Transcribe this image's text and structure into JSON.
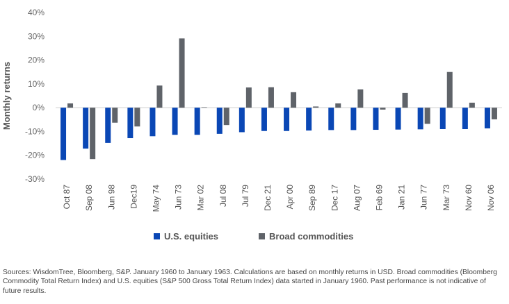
{
  "chart_data": {
    "type": "bar",
    "ylabel": "Monthly returns",
    "xlabel": "",
    "ylim": [
      -30,
      40
    ],
    "yticks": [
      -30,
      -20,
      -10,
      0,
      10,
      20,
      30,
      40
    ],
    "ytick_labels": [
      "-30%",
      "-20%",
      "-10%",
      "0%",
      "10%",
      "20%",
      "30%",
      "40%"
    ],
    "categories": [
      "Oct 87",
      "Sep 08",
      "Jun 98",
      "Dec19",
      "May 74",
      "Jun 73",
      "Mar 02",
      "Jul 08",
      "Jul 79",
      "Dec 21",
      "Apr 00",
      "Sep 89",
      "Dec 17",
      "Aug 07",
      "Feb 69",
      "Jan 21",
      "Jun 77",
      "Mar 73",
      "Nov 60",
      "Nov 06"
    ],
    "series": [
      {
        "name": "U.S. equities",
        "color": "#0a47b5",
        "values": [
          -22,
          -17.2,
          -14.8,
          -12.8,
          -12,
          -11.4,
          -11.4,
          -11,
          -10.3,
          -9.8,
          -9.8,
          -9.6,
          -9.4,
          -9.4,
          -9.3,
          -9.2,
          -9.1,
          -9.0,
          -9.0,
          -8.7
        ]
      },
      {
        "name": "Broad commodities",
        "color": "#5f6369",
        "values": [
          1.8,
          -21.6,
          -6.3,
          -7.9,
          9.3,
          29.1,
          0.2,
          -7.3,
          8.5,
          8.6,
          6.5,
          0.5,
          1.8,
          7.7,
          -0.8,
          6.2,
          -6.8,
          15.0,
          2.1,
          -4.9
        ]
      }
    ],
    "legend_position": "bottom",
    "grid": false
  },
  "source_note": "Sources: WisdomTree, Bloomberg, S&P. January 1960 to January 1963. Calculations are based on monthly returns in USD. Broad commodities (Bloomberg Commodity Total Return Index) and U.S. equities (S&P 500 Gross Total Return Index) data started in January 1960. Past performance is not indicative of future results."
}
